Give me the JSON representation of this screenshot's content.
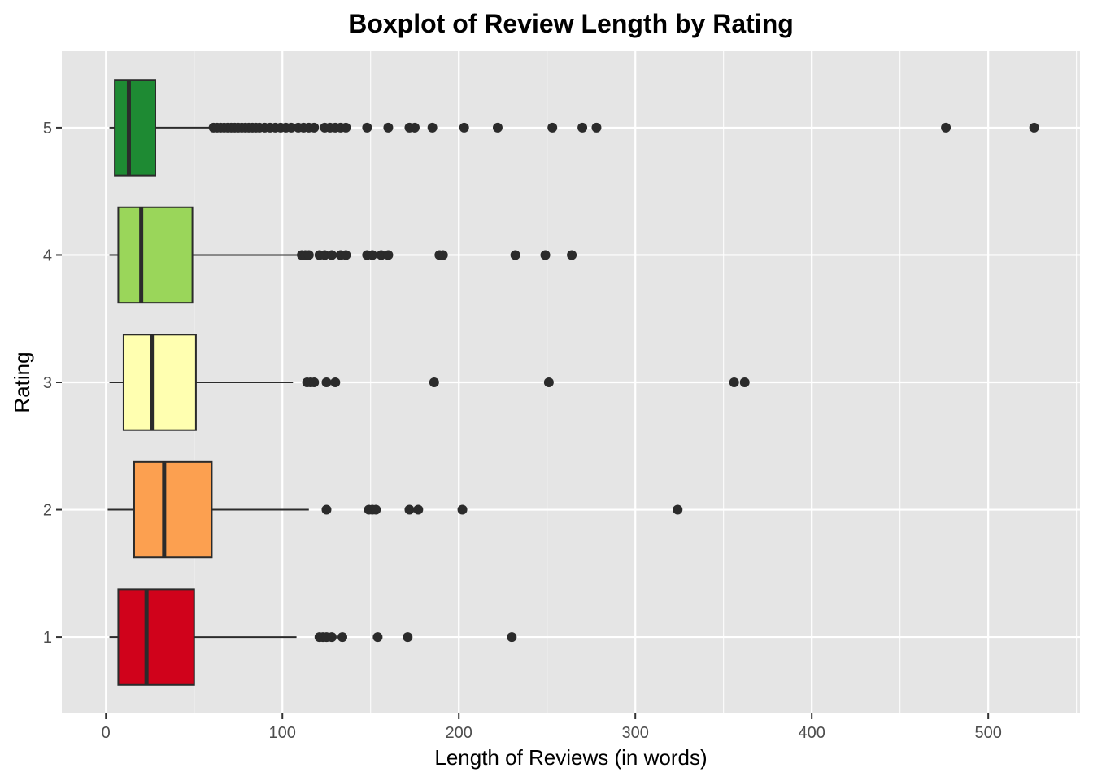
{
  "chart_data": {
    "type": "boxplot",
    "orientation": "horizontal",
    "title": "Boxplot of Review Length by Rating",
    "xlabel": "Length of Reviews (in words)",
    "ylabel": "Rating",
    "xlim": [
      -25,
      552
    ],
    "x_ticks": [
      0,
      100,
      200,
      300,
      400,
      500
    ],
    "x_tick_labels": [
      "0",
      "100",
      "200",
      "300",
      "400",
      "500"
    ],
    "categories": [
      "1",
      "2",
      "3",
      "4",
      "5"
    ],
    "grid": true,
    "colors": {
      "panel_background": "#e5e5e5",
      "grid": "#ffffff",
      "outline": "#2b2b2b"
    },
    "boxes": [
      {
        "rating": "1",
        "fill": "#d0021b",
        "min": 2,
        "q1": 7,
        "median": 23,
        "q3": 50,
        "max": 108,
        "outliers": [
          121,
          123,
          125,
          128,
          134,
          154,
          171,
          230
        ]
      },
      {
        "rating": "2",
        "fill": "#fca050",
        "min": 1,
        "q1": 16,
        "median": 33,
        "q3": 60,
        "max": 115,
        "outliers": [
          125,
          149,
          151,
          153,
          172,
          177,
          202,
          324
        ]
      },
      {
        "rating": "3",
        "fill": "#ffffb0",
        "min": 2,
        "q1": 10,
        "median": 26,
        "q3": 51,
        "max": 106,
        "outliers": [
          114,
          116,
          118,
          125,
          130,
          186,
          251,
          356,
          362
        ]
      },
      {
        "rating": "4",
        "fill": "#9ad65a",
        "min": 2,
        "q1": 7,
        "median": 20,
        "q3": 49,
        "max": 110,
        "outliers": [
          111,
          113,
          115,
          121,
          124,
          128,
          133,
          136,
          148,
          151,
          156,
          160,
          189,
          191,
          232,
          249,
          264
        ]
      },
      {
        "rating": "5",
        "fill": "#1e8a33",
        "min": 2,
        "q1": 5,
        "median": 13,
        "q3": 28,
        "max": 60,
        "outliers": [
          61,
          63,
          65,
          67,
          69,
          71,
          73,
          75,
          77,
          79,
          81,
          83,
          85,
          87,
          90,
          93,
          96,
          99,
          102,
          105,
          109,
          112,
          115,
          118,
          124,
          127,
          130,
          133,
          136,
          148,
          160,
          172,
          175,
          185,
          203,
          222,
          253,
          270,
          278,
          476,
          526
        ]
      }
    ]
  }
}
